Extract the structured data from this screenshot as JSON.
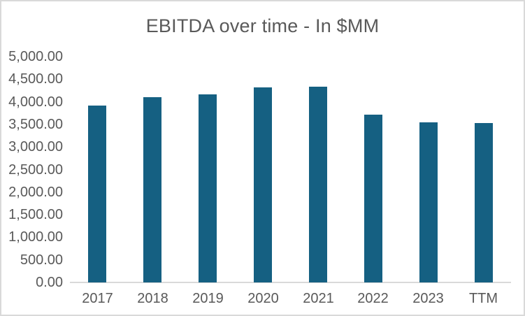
{
  "chart_data": {
    "type": "bar",
    "title": "EBITDA over time - In $MM",
    "categories": [
      "2017",
      "2018",
      "2019",
      "2020",
      "2021",
      "2022",
      "2023",
      "TTM"
    ],
    "values": [
      3920,
      4100,
      4170,
      4320,
      4340,
      3720,
      3550,
      3530
    ],
    "series": [
      {
        "name": "EBITDA",
        "values": [
          3920,
          4100,
          4170,
          4320,
          4340,
          3720,
          3550,
          3530
        ]
      }
    ],
    "xlabel": "",
    "ylabel": "",
    "ylim": [
      0,
      5000
    ],
    "ytick_step": 500,
    "ytick_labels": [
      "0.00",
      "500.00",
      "1,000.00",
      "1,500.00",
      "2,000.00",
      "2,500.00",
      "3,000.00",
      "3,500.00",
      "4,000.00",
      "4,500.00",
      "5,000.00"
    ],
    "grid": false,
    "legend": false,
    "colors": {
      "bar": "#156082",
      "text": "#595959",
      "axis_line": "#D9D9D9",
      "frame_border": "#D9D9D9",
      "background": "#FFFFFF"
    }
  }
}
